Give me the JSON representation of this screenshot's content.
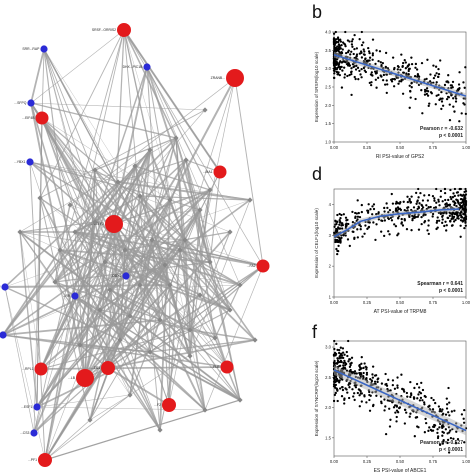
{
  "network": {
    "edge_color": "#9a9a9a",
    "node_colors": {
      "red": "#e31a1c",
      "blue": "#2b2bd6",
      "gray": "#888888"
    },
    "labeled_nodes": [
      {
        "name": "n_top",
        "label": "SRSF...ORRIS2",
        "color": "red"
      },
      {
        "name": "n_srrm",
        "label": "SRR...RAP",
        "color": "blue"
      },
      {
        "name": "n_dhx",
        "label": "DHX...PIC1B",
        "color": "blue"
      },
      {
        "name": "n_big",
        "label": "ZRANB...",
        "color": "red"
      },
      {
        "name": "n_sfpq",
        "label": "...SFPQ",
        "color": "blue"
      },
      {
        "name": "n_eif",
        "label": "...EIF4B",
        "color": "red"
      },
      {
        "name": "n_ybx",
        "label": "...YBX1",
        "color": "blue"
      },
      {
        "name": "n_ma",
        "label": "...MA1",
        "color": "red"
      },
      {
        "name": "n_mid",
        "label": "...CELF2",
        "color": "red"
      },
      {
        "name": "n_fa",
        "label": "...FA2",
        "color": "red"
      },
      {
        "name": "n_ddx",
        "label": "...DDX1",
        "color": "blue"
      },
      {
        "name": "n_ru",
        "label": "RU",
        "color": "blue"
      },
      {
        "name": "n_rr",
        "label": "...RR",
        "color": "blue"
      },
      {
        "name": "n_pfa",
        "label": "...PFA",
        "color": "blue"
      },
      {
        "name": "n_rpl",
        "label": "...RPL1",
        "color": "red"
      },
      {
        "name": "n_lb",
        "label": "...LB",
        "color": "red"
      },
      {
        "name": "n_ple",
        "label": "...PLE",
        "color": "red"
      },
      {
        "name": "n_ts",
        "label": "...TS1",
        "color": "red"
      },
      {
        "name": "n_ff",
        "label": "...F2",
        "color": "red"
      },
      {
        "name": "n_esf",
        "label": "...ESF1",
        "color": "blue"
      },
      {
        "name": "n_cs",
        "label": "...CS3",
        "color": "blue"
      },
      {
        "name": "n_bot",
        "label": "...PF1",
        "color": "red"
      }
    ]
  },
  "panels": [
    {
      "letter": "b"
    },
    {
      "letter": "d"
    },
    {
      "letter": "f"
    }
  ],
  "chart_data": [
    {
      "type": "scatter",
      "panel": "b",
      "ylabel": "Expression of SRSF8(log10 scale)",
      "xlabel": "RI PSI-value of GPS2",
      "xlim": [
        0.0,
        1.0
      ],
      "ylim": [
        1.0,
        4.0
      ],
      "xticks": [
        "0.00",
        "0.25",
        "0.50",
        "0.75",
        "1.00"
      ],
      "yticks": [
        "1.0",
        "1.5",
        "2.0",
        "2.5",
        "3.0",
        "3.5",
        "4.0"
      ],
      "stat_label": "Pearson r = -0.632",
      "p_label": "p < 0.0001",
      "fit": {
        "x": [
          0.0,
          1.0
        ],
        "y": [
          3.38,
          2.25
        ]
      },
      "point_color": "#000000",
      "line_color": "#3a66c4",
      "band_color": "#b0b0b0"
    },
    {
      "type": "scatter",
      "panel": "d",
      "ylabel": "Expression of CELF1(log10 scale)",
      "xlabel": "AT PSI-value of TRPM8",
      "xlim": [
        0.0,
        1.0
      ],
      "ylim": [
        1.0,
        4.5
      ],
      "xticks": [
        "0.00",
        "0.25",
        "0.50",
        "0.75",
        "1.00"
      ],
      "yticks": [
        "1",
        "2",
        "3",
        "4"
      ],
      "stat_label": "Spearman r = 0.641",
      "p_label": "p < 0.0001",
      "fit": {
        "x": [
          0.0,
          0.1,
          0.2,
          0.35,
          0.5,
          0.65,
          0.8,
          0.95
        ],
        "y": [
          2.95,
          3.18,
          3.45,
          3.62,
          3.7,
          3.75,
          3.82,
          3.85
        ]
      },
      "point_color": "#000000",
      "line_color": "#3a66c4",
      "band_color": "#b0b0b0"
    },
    {
      "type": "scatter",
      "panel": "f",
      "ylabel": "Expression of SYNCRIP(log10 scale)",
      "xlabel": "ES PSI-value of ABCE1",
      "xlim": [
        0.0,
        1.0
      ],
      "ylim": [
        1.2,
        3.1
      ],
      "xticks": [
        "0.00",
        "0.25",
        "0.50",
        "0.75",
        "1.00"
      ],
      "yticks": [
        "1.5",
        "2.0",
        "2.5",
        "3.0"
      ],
      "stat_label": "Pearson r = -0.527",
      "p_label": "p < 0.0001",
      "fit": {
        "x": [
          0.0,
          1.0
        ],
        "y": [
          2.62,
          1.62
        ]
      },
      "point_color": "#000000",
      "line_color": "#3a66c4",
      "band_color": "#b0b0b0"
    }
  ]
}
